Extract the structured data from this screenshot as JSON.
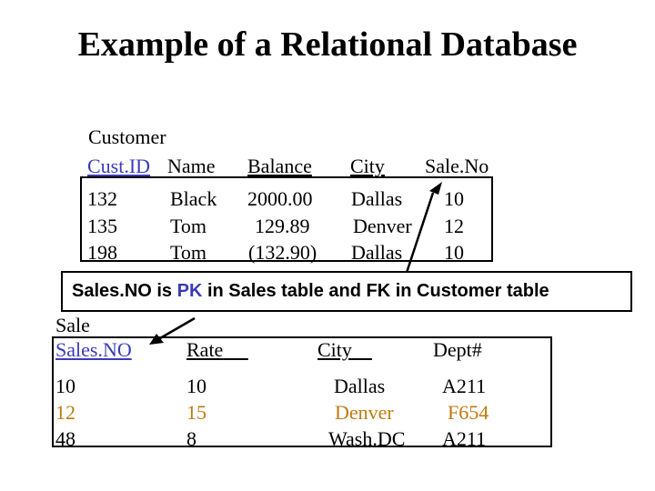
{
  "title": "Example of a Relational Database",
  "customer": {
    "caption": "Customer",
    "columns": [
      "Cust.ID",
      "Name",
      "Balance",
      "City",
      "Sale.No"
    ],
    "rows": [
      [
        "132",
        "Black",
        "2000.00",
        "Dallas",
        "10"
      ],
      [
        "135",
        "Tom",
        "129.89",
        "Denver",
        "12"
      ],
      [
        "198",
        "Tom",
        "(132.90)",
        "Dallas",
        "10"
      ]
    ]
  },
  "note": {
    "part1": "Sales.NO is ",
    "pk": "PK",
    "part2": " in Sales table and ",
    "fk": "FK",
    "part3": " in Customer table"
  },
  "sale": {
    "caption": "Sale",
    "columns": [
      "Sales.NO",
      "Rate",
      "City",
      "Dept#"
    ],
    "rows": [
      [
        "10",
        "10",
        "Dallas",
        "A211"
      ],
      [
        "12",
        "15",
        "Denver",
        "F654"
      ],
      [
        "48",
        "8",
        "Wash.DC",
        "A211"
      ]
    ]
  },
  "colors": {
    "primary_key": "#3b3bb8",
    "highlight_row": "#c07a10",
    "text": "#000000"
  }
}
